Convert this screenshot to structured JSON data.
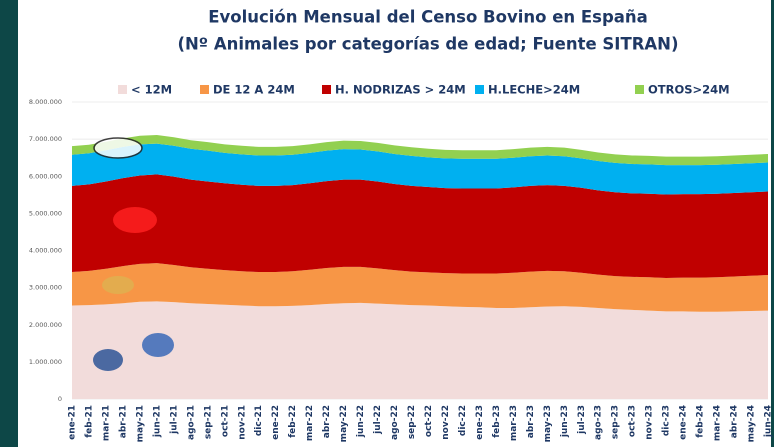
{
  "chart_data": {
    "type": "stacked-area",
    "title": "Evolución Mensual del Censo Bovino en España",
    "subtitle": "(Nº Animales por categorías de edad; Fuente SITRAN)",
    "categories": [
      "ene-21",
      "feb-21",
      "mar-21",
      "abr-21",
      "may-21",
      "jun-21",
      "jul-21",
      "ago-21",
      "sep-21",
      "oct-21",
      "nov-21",
      "dic-21",
      "ene-22",
      "feb-22",
      "mar-22",
      "abr-22",
      "may-22",
      "jun-22",
      "jul-22",
      "ago-22",
      "sep-22",
      "oct-22",
      "nov-22",
      "dic-22",
      "ene-23",
      "feb-23",
      "mar-23",
      "abr-23",
      "may-23",
      "jun-23",
      "jul-23",
      "ago-23",
      "sep-23",
      "oct-23",
      "nov-23",
      "dic-23",
      "ene-24",
      "feb-24",
      "mar-24",
      "abr-24",
      "may-24",
      "jun-24"
    ],
    "series": [
      {
        "name": "< 12M",
        "color": "#f2dcdb",
        "legend_color": "#f2dcdb",
        "values": [
          2520000,
          2530000,
          2550000,
          2580000,
          2620000,
          2630000,
          2610000,
          2580000,
          2560000,
          2540000,
          2520000,
          2500000,
          2500000,
          2510000,
          2530000,
          2560000,
          2580000,
          2590000,
          2570000,
          2550000,
          2530000,
          2520000,
          2500000,
          2480000,
          2470000,
          2450000,
          2450000,
          2470000,
          2490000,
          2500000,
          2480000,
          2450000,
          2420000,
          2400000,
          2380000,
          2360000,
          2360000,
          2350000,
          2350000,
          2360000,
          2370000,
          2380000
        ]
      },
      {
        "name": "DE 12 A 24M",
        "color": "#f79646",
        "values": [
          900000,
          920000,
          960000,
          1000000,
          1020000,
          1030000,
          1000000,
          970000,
          950000,
          930000,
          920000,
          920000,
          920000,
          930000,
          950000,
          970000,
          980000,
          970000,
          950000,
          920000,
          900000,
          890000,
          890000,
          900000,
          910000,
          930000,
          950000,
          960000,
          960000,
          940000,
          920000,
          900000,
          890000,
          890000,
          900000,
          900000,
          910000,
          920000,
          930000,
          940000,
          950000,
          960000
        ]
      },
      {
        "name": "H. NODRIZAS > 24M",
        "color": "#c00000",
        "values": [
          2320000,
          2330000,
          2350000,
          2370000,
          2380000,
          2390000,
          2380000,
          2360000,
          2350000,
          2340000,
          2330000,
          2320000,
          2320000,
          2320000,
          2330000,
          2340000,
          2350000,
          2350000,
          2340000,
          2320000,
          2310000,
          2300000,
          2290000,
          2290000,
          2290000,
          2290000,
          2300000,
          2310000,
          2310000,
          2300000,
          2290000,
          2270000,
          2260000,
          2250000,
          2250000,
          2250000,
          2250000,
          2250000,
          2250000,
          2250000,
          2250000,
          2250000
        ]
      },
      {
        "name": "H.LECHE>24M",
        "color": "#00b0f0",
        "values": [
          840000,
          840000,
          840000,
          840000,
          840000,
          830000,
          830000,
          830000,
          830000,
          820000,
          820000,
          820000,
          820000,
          820000,
          820000,
          820000,
          820000,
          810000,
          810000,
          810000,
          810000,
          800000,
          800000,
          800000,
          800000,
          800000,
          800000,
          800000,
          800000,
          800000,
          790000,
          790000,
          790000,
          790000,
          790000,
          790000,
          780000,
          780000,
          780000,
          780000,
          780000,
          780000
        ]
      },
      {
        "name": "OTROS>24M",
        "color": "#92d050",
        "values": [
          230000,
          230000,
          230000,
          230000,
          230000,
          230000,
          230000,
          230000,
          230000,
          230000,
          230000,
          230000,
          230000,
          230000,
          230000,
          230000,
          230000,
          230000,
          230000,
          230000,
          230000,
          230000,
          230000,
          230000,
          230000,
          230000,
          230000,
          230000,
          230000,
          230000,
          230000,
          230000,
          230000,
          230000,
          230000,
          230000,
          230000,
          230000,
          230000,
          230000,
          230000,
          230000
        ]
      }
    ],
    "ylim": [
      0,
      8000000
    ],
    "yticks": [
      0,
      {
        "value": 1000000,
        "label": "1.000.000"
      },
      {
        "value": 2000000,
        "label": "2.000.000"
      },
      {
        "value": 3000000,
        "label": "3.000.000"
      },
      {
        "value": 4000000,
        "label": "4.000.000"
      },
      {
        "value": 5000000,
        "label": "5.000.000"
      },
      {
        "value": 6000000,
        "label": "6.000.000"
      },
      {
        "value": 7000000,
        "label": "7.000.000"
      },
      {
        "value": 8000000,
        "label": "8.000.000"
      }
    ],
    "grid": true
  }
}
